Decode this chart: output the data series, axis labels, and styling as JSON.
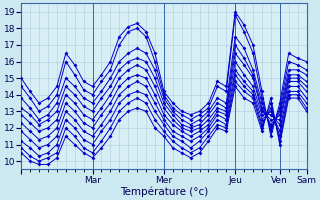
{
  "xlabel": "Température (°c)",
  "bg_color": "#cce8f0",
  "plot_bg_color": "#d8eef5",
  "line_color": "#0000cc",
  "grid_color": "#aaccdd",
  "ylim": [
    9.5,
    19.5
  ],
  "yticks": [
    10,
    11,
    12,
    13,
    14,
    15,
    16,
    17,
    18,
    19
  ],
  "day_positions": [
    0,
    8,
    16,
    24,
    29,
    32
  ],
  "day_labels": [
    "",
    "Mar",
    "Mer",
    "Jeu",
    "Ven",
    "Sam"
  ],
  "figsize": [
    3.2,
    2.0
  ],
  "dpi": 100,
  "series": [
    [
      15.0,
      14.2,
      13.5,
      13.8,
      14.5,
      16.5,
      15.8,
      14.8,
      14.5,
      15.2,
      16.0,
      17.5,
      18.1,
      18.3,
      17.8,
      16.5,
      14.2,
      13.5,
      13.0,
      12.8,
      13.0,
      13.5,
      14.8,
      14.5,
      19.0,
      18.2,
      17.0,
      14.2,
      11.5,
      13.5,
      16.5,
      16.2,
      16.0
    ],
    [
      14.5,
      13.8,
      13.0,
      13.3,
      14.0,
      16.0,
      15.2,
      14.3,
      14.0,
      14.8,
      15.5,
      17.0,
      17.8,
      18.0,
      17.5,
      16.0,
      14.0,
      13.2,
      12.8,
      12.5,
      12.8,
      13.2,
      14.5,
      14.2,
      18.8,
      17.8,
      16.5,
      13.8,
      11.8,
      13.2,
      16.0,
      15.8,
      15.5
    ],
    [
      13.8,
      13.2,
      12.5,
      12.8,
      13.5,
      15.0,
      14.5,
      13.8,
      13.5,
      14.2,
      15.0,
      16.0,
      16.5,
      16.8,
      16.5,
      15.5,
      13.8,
      13.0,
      12.5,
      12.2,
      12.5,
      13.0,
      13.8,
      13.5,
      17.5,
      16.8,
      15.5,
      13.5,
      12.0,
      13.0,
      15.5,
      15.5,
      15.2
    ],
    [
      13.2,
      12.8,
      12.2,
      12.5,
      13.0,
      14.5,
      14.0,
      13.3,
      13.0,
      13.8,
      14.5,
      15.5,
      16.0,
      16.2,
      16.0,
      15.0,
      13.5,
      12.8,
      12.2,
      12.0,
      12.2,
      12.8,
      13.5,
      13.2,
      17.0,
      16.2,
      15.2,
      13.2,
      12.2,
      12.8,
      15.2,
      15.2,
      14.8
    ],
    [
      12.8,
      12.3,
      11.8,
      12.0,
      12.5,
      14.0,
      13.5,
      12.8,
      12.5,
      13.2,
      14.0,
      15.0,
      15.5,
      15.8,
      15.5,
      14.5,
      13.2,
      12.5,
      12.0,
      11.8,
      12.0,
      12.5,
      13.2,
      13.0,
      16.5,
      15.8,
      15.0,
      13.0,
      12.5,
      12.5,
      15.0,
      15.0,
      14.5
    ],
    [
      12.3,
      11.8,
      11.3,
      11.5,
      12.0,
      13.5,
      13.0,
      12.3,
      12.0,
      12.8,
      13.5,
      14.5,
      15.0,
      15.2,
      15.0,
      14.0,
      12.8,
      12.2,
      11.8,
      11.5,
      11.8,
      12.2,
      13.0,
      12.8,
      16.0,
      15.2,
      14.5,
      12.8,
      12.8,
      12.2,
      14.8,
      14.8,
      14.2
    ],
    [
      11.8,
      11.3,
      10.8,
      11.0,
      11.5,
      13.0,
      12.5,
      11.8,
      11.5,
      12.2,
      13.0,
      14.0,
      14.5,
      14.8,
      14.5,
      13.5,
      12.5,
      11.8,
      11.5,
      11.2,
      11.5,
      12.0,
      12.8,
      12.5,
      15.5,
      14.8,
      14.2,
      12.5,
      13.0,
      11.8,
      14.5,
      14.5,
      13.8
    ],
    [
      11.2,
      10.8,
      10.3,
      10.5,
      11.0,
      12.5,
      12.0,
      11.3,
      11.0,
      11.8,
      12.5,
      13.5,
      14.0,
      14.2,
      14.0,
      13.0,
      12.2,
      11.5,
      11.2,
      10.8,
      11.2,
      11.8,
      12.5,
      12.2,
      15.2,
      14.5,
      14.0,
      12.2,
      13.2,
      11.5,
      14.2,
      14.2,
      13.5
    ],
    [
      10.8,
      10.3,
      10.0,
      10.2,
      10.5,
      12.0,
      11.5,
      10.8,
      10.5,
      11.2,
      12.0,
      13.0,
      13.5,
      13.8,
      13.5,
      12.5,
      11.8,
      11.2,
      10.8,
      10.5,
      10.8,
      11.5,
      12.2,
      12.0,
      14.8,
      14.2,
      13.8,
      12.0,
      13.5,
      11.2,
      14.0,
      14.0,
      13.2
    ],
    [
      10.5,
      10.0,
      9.8,
      9.8,
      10.2,
      11.5,
      11.0,
      10.5,
      10.2,
      10.8,
      11.5,
      12.5,
      13.0,
      13.2,
      13.0,
      12.0,
      11.5,
      10.8,
      10.5,
      10.2,
      10.5,
      11.2,
      12.0,
      11.8,
      14.5,
      13.8,
      13.5,
      11.8,
      13.8,
      11.0,
      13.8,
      13.8,
      13.0
    ]
  ]
}
